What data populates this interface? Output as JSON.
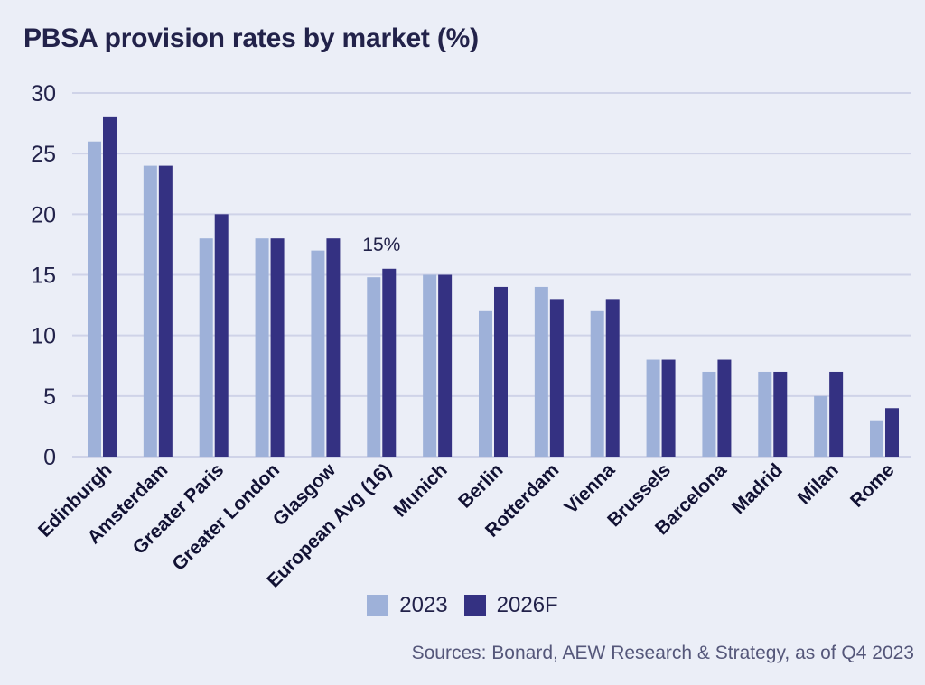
{
  "title": "PBSA provision rates by market (%)",
  "source": "Sources: Bonard, AEW Research & Strategy, as of Q4 2023",
  "colors": {
    "s2023": "#9eb1d9",
    "s2026": "#343182",
    "grid": "#cfd3e8",
    "text": "#22224a"
  },
  "chart_data": {
    "type": "bar",
    "categories": [
      "Edinburgh",
      "Amsterdam",
      "Greater Paris",
      "Greater London",
      "Glasgow",
      "European Avg (16)",
      "Munich",
      "Berlin",
      "Rotterdam",
      "Vienna",
      "Brussels",
      "Barcelona",
      "Madrid",
      "Milan",
      "Rome"
    ],
    "series": [
      {
        "name": "2023",
        "values": [
          26,
          24,
          18,
          18,
          17,
          14.8,
          15,
          12,
          14,
          12,
          8,
          7,
          7,
          5,
          3
        ]
      },
      {
        "name": "2026F",
        "values": [
          28,
          24,
          20,
          18,
          18,
          15.5,
          15,
          14,
          13,
          13,
          8,
          8,
          7,
          7,
          4
        ]
      }
    ],
    "ylim": [
      0,
      30
    ],
    "yticks": [
      0,
      5,
      10,
      15,
      20,
      25,
      30
    ],
    "grid": true,
    "legend": "bottom-center",
    "annotations": [
      {
        "category": "European Avg (16)",
        "text": "15%"
      }
    ]
  }
}
